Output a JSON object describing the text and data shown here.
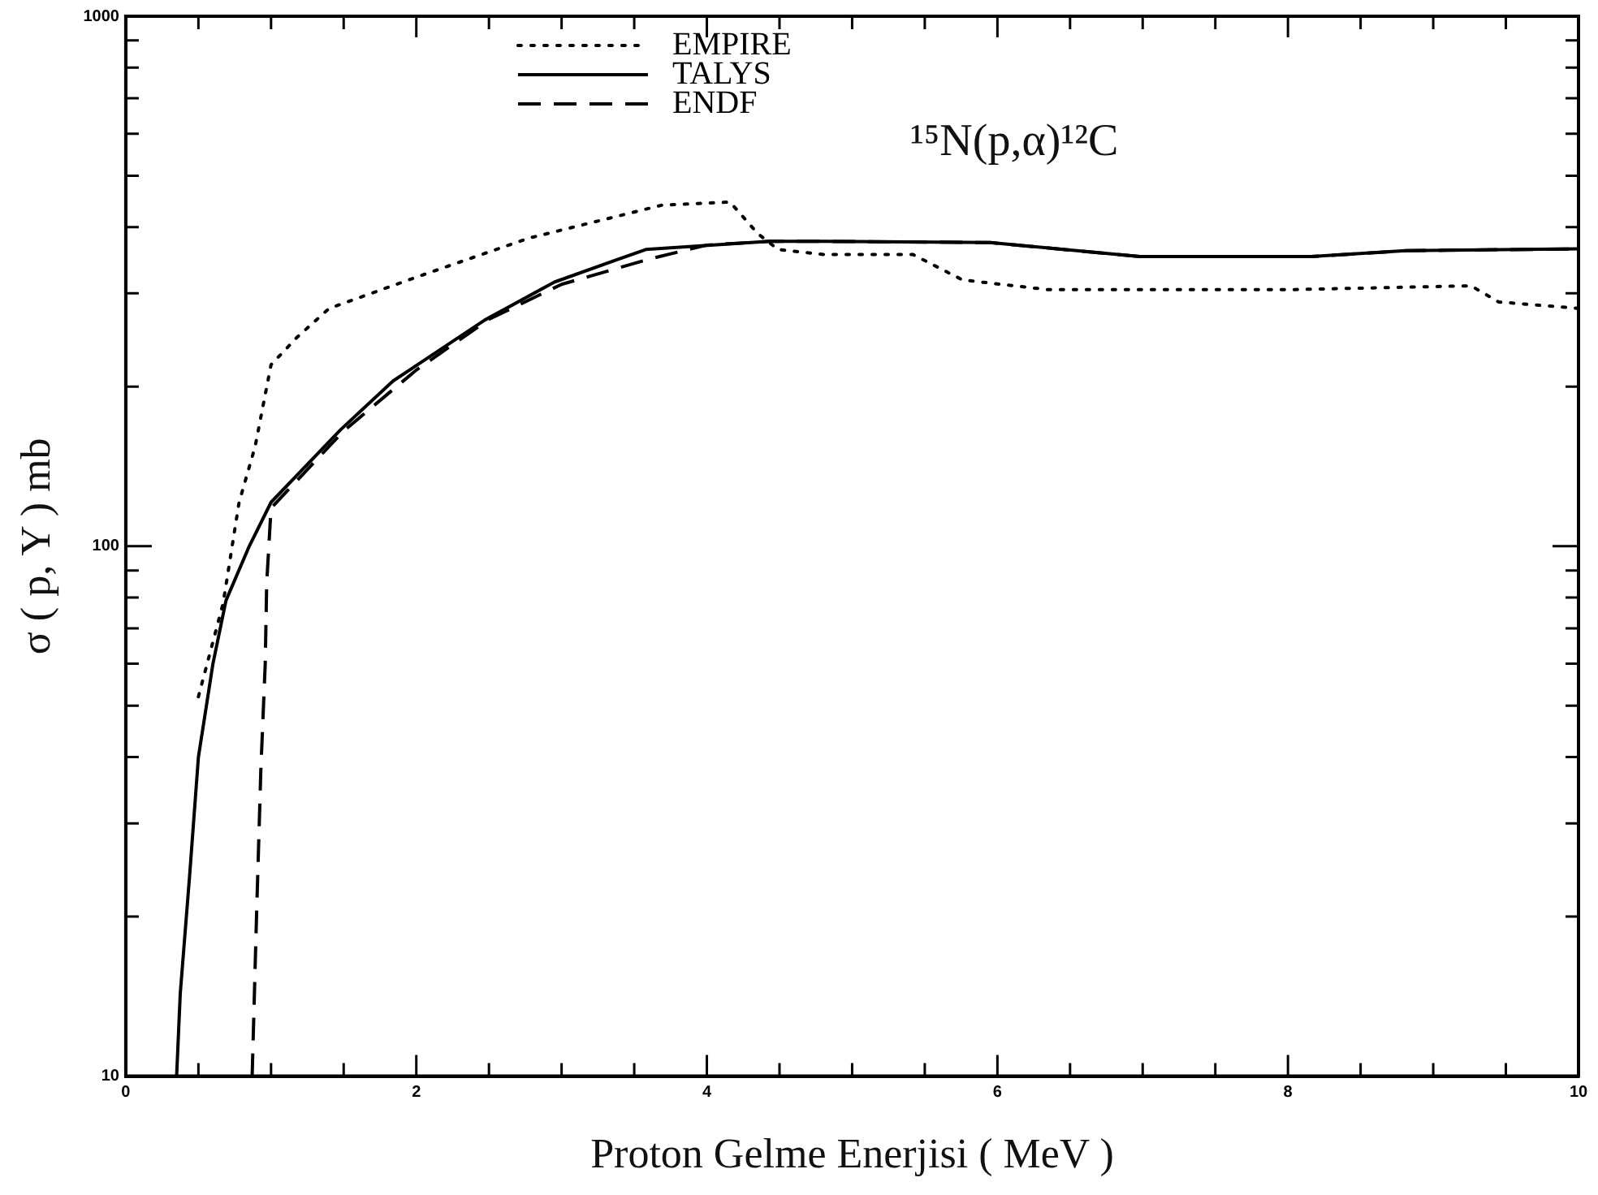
{
  "chart_data": {
    "type": "line",
    "xlabel": "Proton Gelme Enerjisi ( MeV )",
    "ylabel": "σ ( p, Y ) mb",
    "annotations": [
      "¹⁵N(p,α)¹²C"
    ],
    "log": "y",
    "grid": false,
    "legend": "top",
    "marker": "none",
    "xlim": [
      0,
      10
    ],
    "ylim": [
      10,
      1000
    ],
    "xticks": [
      0,
      {
        "value": 0.5,
        "label": null
      },
      {
        "value": 1,
        "label": null
      },
      {
        "value": 1.5,
        "label": null
      },
      2,
      {
        "value": 2.5,
        "label": null
      },
      {
        "value": 3,
        "label": null
      },
      {
        "value": 3.5,
        "label": null
      },
      4,
      {
        "value": 4.5,
        "label": null
      },
      {
        "value": 5,
        "label": null
      },
      {
        "value": 5.5,
        "label": null
      },
      6,
      {
        "value": 6.5,
        "label": null
      },
      {
        "value": 7,
        "label": null
      },
      {
        "value": 7.5,
        "label": null
      },
      8,
      {
        "value": 8.5,
        "label": null
      },
      {
        "value": 9,
        "label": null
      },
      {
        "value": 9.5,
        "label": null
      },
      10
    ],
    "yticks": [
      10,
      {
        "value": 20,
        "label": null
      },
      {
        "value": 30,
        "label": null
      },
      {
        "value": 40,
        "label": null
      },
      {
        "value": 50,
        "label": null
      },
      {
        "value": 60,
        "label": null
      },
      {
        "value": 70,
        "label": null
      },
      {
        "value": 80,
        "label": null
      },
      {
        "value": 90,
        "label": null
      },
      100,
      {
        "value": 200,
        "label": null
      },
      {
        "value": 300,
        "label": null
      },
      {
        "value": 400,
        "label": null
      },
      {
        "value": 500,
        "label": null
      },
      {
        "value": 600,
        "label": null
      },
      {
        "value": 700,
        "label": null
      },
      {
        "value": 800,
        "label": null
      },
      {
        "value": 900,
        "label": null
      },
      1000
    ],
    "series": [
      {
        "name": "EMPIRE",
        "color": "#000000",
        "line_style": "dotted",
        "x": [
          0.5,
          0.67,
          0.78,
          0.89,
          1.0,
          1.18,
          1.4,
          2.03,
          2.77,
          3.69,
          4.16,
          4.35,
          4.49,
          4.81,
          5.42,
          5.76,
          6.34,
          8.05,
          9.26,
          9.45,
          10
        ],
        "values": [
          52,
          78,
          121,
          154,
          220,
          248,
          281,
          324,
          381,
          440,
          446,
          389,
          363,
          355,
          355,
          318,
          305,
          305,
          310,
          289,
          281
        ]
      },
      {
        "name": "TALYS",
        "color": "#000000",
        "line_style": "solid",
        "x": [
          0.35,
          0.375,
          0.44,
          0.5,
          0.6,
          0.69,
          0.85,
          1.0,
          1.48,
          1.84,
          2.47,
          2.95,
          3.58,
          4.43,
          4.81,
          5.95,
          6.98,
          8.16,
          8.81,
          10
        ],
        "values": [
          10,
          14.3,
          24,
          40,
          60,
          79,
          100,
          121,
          166,
          205,
          267,
          315,
          363,
          376,
          376,
          374,
          352,
          352,
          361,
          364
        ]
      },
      {
        "name": "ENDF",
        "color": "#000000",
        "line_style": "dashed",
        "x": [
          0.87,
          0.9,
          0.93,
          0.96,
          0.97,
          1.0,
          1.5,
          2.0,
          2.5,
          3.0,
          3.6,
          4.0,
          4.43,
          4.81,
          5.95,
          6.98,
          8.16,
          8.81,
          10
        ],
        "values": [
          10,
          20,
          38,
          60,
          85,
          118,
          165,
          215,
          268,
          312,
          348,
          370,
          376,
          376,
          374,
          352,
          352,
          361,
          364
        ]
      }
    ]
  }
}
